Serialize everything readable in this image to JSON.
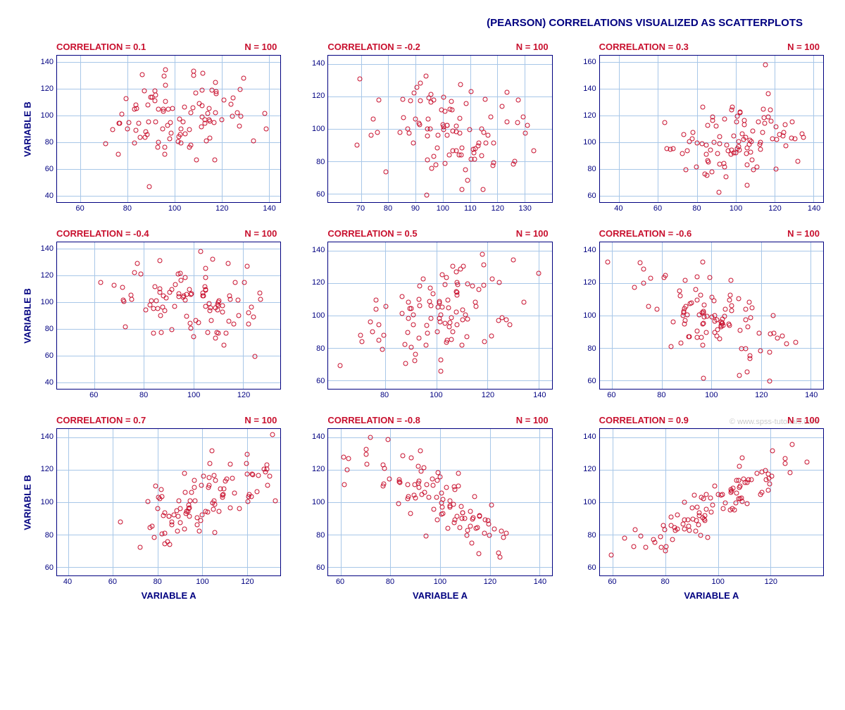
{
  "title": "(PEARSON) CORRELATIONS VISUALIZED AS SCATTERPLOTS",
  "title_color": "#000080",
  "label_color": "#000080",
  "header_color": "#c8102e",
  "tick_color": "#000080",
  "grid_color": "#a8c7e8",
  "border_color": "#000080",
  "point_color": "#c8102e",
  "background_color": "#ffffff",
  "xlabel": "VARIABLE A",
  "ylabel": "VARIABLE B",
  "watermark": "© www.spss-tutorials.com",
  "panels": [
    {
      "corr_label": "CORRELATION = 0.1",
      "n_label": "N = 100",
      "correlation": 0.1,
      "show_ylabel": true,
      "show_xlabel": false,
      "xlim": [
        50,
        145
      ],
      "xticks": [
        60,
        80,
        100,
        120,
        140
      ],
      "ylim": [
        35,
        145
      ],
      "yticks": [
        40,
        60,
        80,
        100,
        120,
        140
      ]
    },
    {
      "corr_label": "CORRELATION = -0.2",
      "n_label": "N = 100",
      "correlation": -0.2,
      "show_ylabel": false,
      "show_xlabel": false,
      "xlim": [
        58,
        140
      ],
      "xticks": [
        70,
        80,
        90,
        100,
        110,
        120,
        130
      ],
      "ylim": [
        55,
        145
      ],
      "yticks": [
        60,
        80,
        100,
        120,
        140
      ]
    },
    {
      "corr_label": "CORRELATION = 0.3",
      "n_label": "N = 100",
      "correlation": 0.3,
      "show_ylabel": false,
      "show_xlabel": false,
      "xlim": [
        30,
        145
      ],
      "xticks": [
        40,
        60,
        80,
        100,
        120,
        140
      ],
      "ylim": [
        55,
        165
      ],
      "yticks": [
        60,
        80,
        100,
        120,
        140,
        160
      ]
    },
    {
      "corr_label": "CORRELATION = -0.4",
      "n_label": "N = 100",
      "correlation": -0.4,
      "show_ylabel": true,
      "show_xlabel": false,
      "xlim": [
        45,
        135
      ],
      "xticks": [
        60,
        80,
        100,
        120
      ],
      "ylim": [
        35,
        145
      ],
      "yticks": [
        40,
        60,
        80,
        100,
        120,
        140
      ]
    },
    {
      "corr_label": "CORRELATION = 0.5",
      "n_label": "N = 100",
      "correlation": 0.5,
      "show_ylabel": false,
      "show_xlabel": false,
      "xlim": [
        58,
        145
      ],
      "xticks": [
        80,
        100,
        120,
        140
      ],
      "ylim": [
        55,
        145
      ],
      "yticks": [
        60,
        80,
        100,
        120,
        140
      ]
    },
    {
      "corr_label": "CORRELATION = -0.6",
      "n_label": "N = 100",
      "correlation": -0.6,
      "show_ylabel": false,
      "show_xlabel": false,
      "xlim": [
        55,
        145
      ],
      "xticks": [
        60,
        80,
        100,
        120,
        140
      ],
      "ylim": [
        55,
        145
      ],
      "yticks": [
        60,
        80,
        100,
        120,
        140
      ]
    },
    {
      "corr_label": "CORRELATION = 0.7",
      "n_label": "N = 100",
      "correlation": 0.7,
      "show_ylabel": true,
      "show_xlabel": true,
      "xlim": [
        35,
        135
      ],
      "xticks": [
        40,
        60,
        80,
        100,
        120
      ],
      "ylim": [
        55,
        145
      ],
      "yticks": [
        60,
        80,
        100,
        120,
        140
      ]
    },
    {
      "corr_label": "CORRELATION = -0.8",
      "n_label": "N = 100",
      "correlation": -0.8,
      "show_ylabel": false,
      "show_xlabel": true,
      "xlim": [
        55,
        145
      ],
      "xticks": [
        60,
        80,
        100,
        120,
        140
      ],
      "ylim": [
        55,
        145
      ],
      "yticks": [
        60,
        80,
        100,
        120,
        140
      ]
    },
    {
      "corr_label": "CORRELATION = 0.9",
      "n_label": "N = 100",
      "correlation": 0.9,
      "show_ylabel": false,
      "show_xlabel": true,
      "xlim": [
        55,
        140
      ],
      "xticks": [
        60,
        80,
        100,
        120
      ],
      "ylim": [
        55,
        145
      ],
      "yticks": [
        60,
        80,
        100,
        120,
        140
      ]
    }
  ],
  "n_points": 100,
  "data_mean": 100,
  "data_sd": 16,
  "seed": 42
}
